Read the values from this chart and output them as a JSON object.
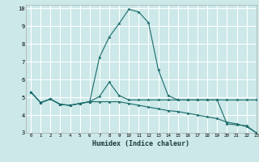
{
  "xlabel": "Humidex (Indice chaleur)",
  "xlim": [
    -0.5,
    23
  ],
  "ylim": [
    3,
    10.2
  ],
  "yticks": [
    3,
    4,
    5,
    6,
    7,
    8,
    9,
    10
  ],
  "xticks": [
    0,
    1,
    2,
    3,
    4,
    5,
    6,
    7,
    8,
    9,
    10,
    11,
    12,
    13,
    14,
    15,
    16,
    17,
    18,
    19,
    20,
    21,
    22,
    23
  ],
  "bg_color": "#cce8e8",
  "grid_color": "#ffffff",
  "line_color": "#1a6b6b",
  "line1_x": [
    0,
    1,
    2,
    3,
    4,
    5,
    6,
    7,
    8,
    9,
    10,
    11,
    12,
    13,
    14,
    15,
    16,
    17,
    18,
    19,
    20,
    21,
    22,
    23
  ],
  "line1_y": [
    5.3,
    4.7,
    4.9,
    4.6,
    4.55,
    4.65,
    4.75,
    7.25,
    8.4,
    9.15,
    9.95,
    9.8,
    9.2,
    6.55,
    5.1,
    4.85,
    4.85,
    4.85,
    4.85,
    4.85,
    4.85,
    4.85,
    4.85,
    4.85
  ],
  "line2_x": [
    0,
    1,
    2,
    3,
    4,
    5,
    6,
    7,
    8,
    9,
    10,
    11,
    12,
    13,
    14,
    15,
    16,
    17,
    18,
    19,
    20,
    21,
    22,
    23
  ],
  "line2_y": [
    5.3,
    4.7,
    4.9,
    4.6,
    4.55,
    4.65,
    4.75,
    5.05,
    5.85,
    5.1,
    4.85,
    4.85,
    4.85,
    4.85,
    4.85,
    4.85,
    4.85,
    4.85,
    4.85,
    4.85,
    3.5,
    3.45,
    3.4,
    3.0
  ],
  "line3_x": [
    0,
    1,
    2,
    3,
    4,
    5,
    6,
    7,
    8,
    9,
    10,
    11,
    12,
    13,
    14,
    15,
    16,
    17,
    18,
    19,
    20,
    21,
    22,
    23
  ],
  "line3_y": [
    5.3,
    4.7,
    4.9,
    4.6,
    4.55,
    4.65,
    4.75,
    4.75,
    4.75,
    4.75,
    4.65,
    4.55,
    4.45,
    4.35,
    4.25,
    4.2,
    4.1,
    4.0,
    3.9,
    3.8,
    3.6,
    3.5,
    3.35,
    3.0
  ]
}
